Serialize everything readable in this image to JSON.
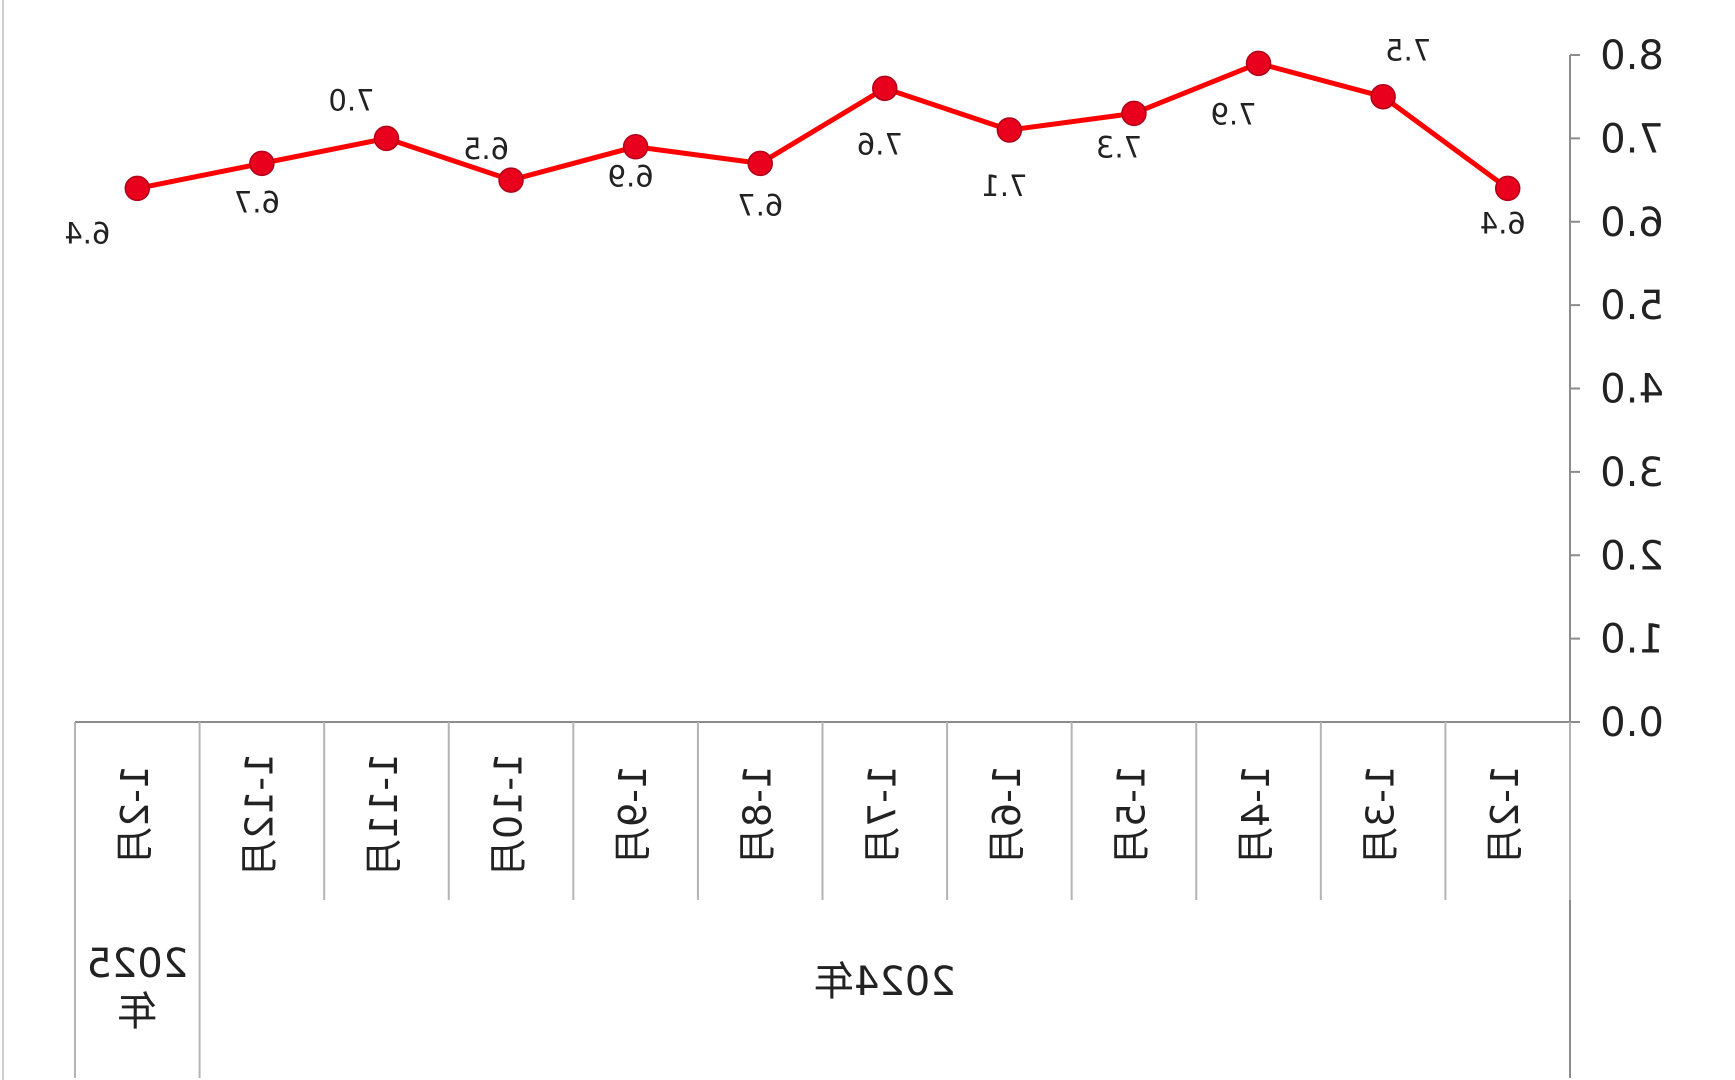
{
  "chart_data": {
    "type": "line",
    "mirrored": true,
    "categories": [
      "1-2月",
      "1-3月",
      "1-4月",
      "1-5月",
      "1-6月",
      "1-7月",
      "1-8月",
      "1-9月",
      "1-10月",
      "1-11月",
      "1-12月",
      "1-2月"
    ],
    "years": [
      {
        "label": "2024年",
        "span": [
          0,
          10
        ]
      },
      {
        "label": "2025年",
        "span": [
          11,
          11
        ]
      }
    ],
    "series": [
      {
        "values": [
          6.4,
          7.5,
          7.9,
          7.3,
          7.1,
          7.6,
          6.7,
          6.9,
          6.5,
          7.0,
          6.7,
          6.4
        ],
        "color": "#ff0000",
        "marker_color": "#e8001c"
      }
    ],
    "data_labels": [
      "6.4",
      "7.5",
      "7.9",
      "7.3",
      "7.1",
      "7.6",
      "6.7",
      "6.9",
      "6.5",
      "7.0",
      "6.7",
      "6.4"
    ],
    "y_ticks": [
      "0.0",
      "1.0",
      "2.0",
      "3.0",
      "4.0",
      "5.0",
      "6.0",
      "7.0",
      "8.0"
    ],
    "ylim": [
      0,
      8
    ],
    "y_axis_side": "right",
    "grid": false,
    "legend": "none",
    "title": "",
    "xlabel": "",
    "ylabel": ""
  }
}
